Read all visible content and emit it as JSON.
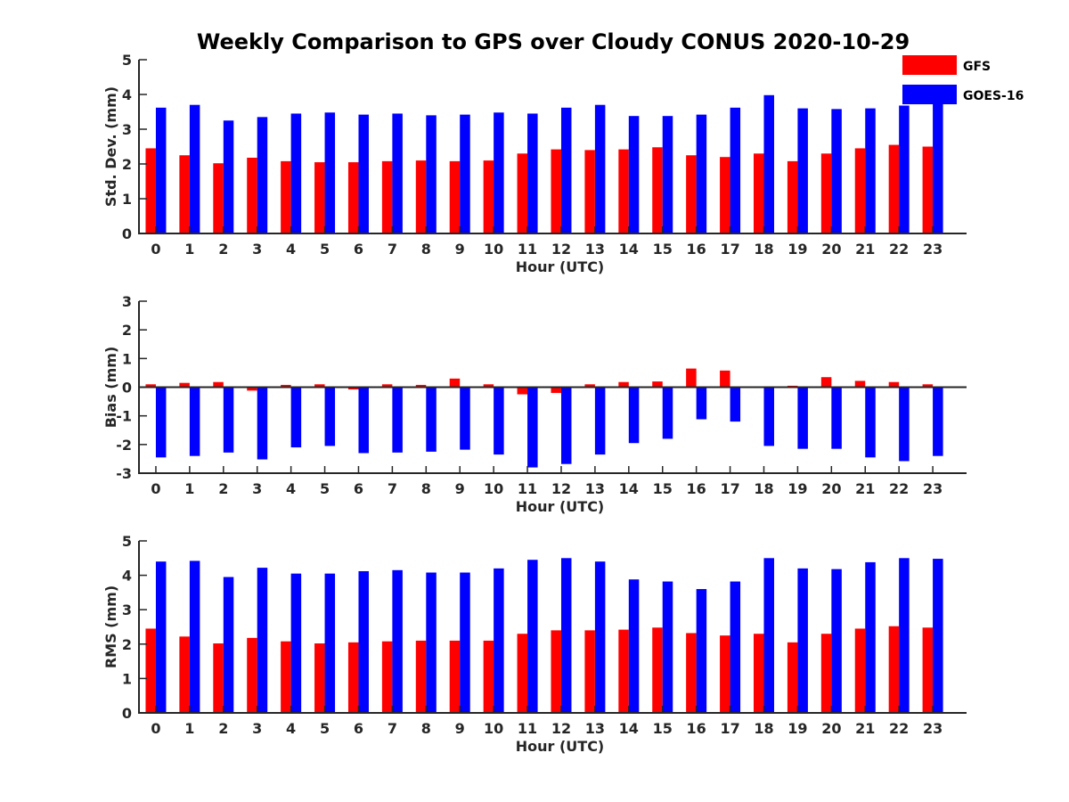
{
  "figure": {
    "title": "Weekly Comparison to GPS over Cloudy CONUS 2020-10-29"
  },
  "legend": {
    "placement": "top-right",
    "items": [
      {
        "label": "GFS",
        "color": "#ff0000"
      },
      {
        "label": "GOES-16",
        "color": "#0000ff"
      }
    ]
  },
  "chart_data": [
    {
      "type": "bar",
      "xlabel": "Hour (UTC)",
      "ylabel": "Std. Dev. (mm)",
      "ylim": [
        0,
        5
      ],
      "yticks": [
        0,
        1,
        2,
        3,
        4,
        5
      ],
      "categories": [
        "0",
        "1",
        "2",
        "3",
        "4",
        "5",
        "6",
        "7",
        "8",
        "9",
        "10",
        "11",
        "12",
        "13",
        "14",
        "15",
        "16",
        "17",
        "18",
        "19",
        "20",
        "21",
        "22",
        "23"
      ],
      "series": [
        {
          "name": "GFS",
          "color": "#ff0000",
          "values": [
            2.45,
            2.25,
            2.02,
            2.18,
            2.08,
            2.05,
            2.05,
            2.08,
            2.1,
            2.08,
            2.1,
            2.3,
            2.42,
            2.4,
            2.42,
            2.48,
            2.25,
            2.2,
            2.3,
            2.08,
            2.3,
            2.45,
            2.55,
            2.5
          ]
        },
        {
          "name": "GOES-16",
          "color": "#0000ff",
          "values": [
            3.62,
            3.7,
            3.25,
            3.35,
            3.45,
            3.48,
            3.42,
            3.45,
            3.4,
            3.42,
            3.48,
            3.45,
            3.62,
            3.7,
            3.38,
            3.38,
            3.42,
            3.62,
            3.98,
            3.6,
            3.58,
            3.6,
            3.68,
            4.0
          ]
        }
      ]
    },
    {
      "type": "bar",
      "xlabel": "Hour (UTC)",
      "ylabel": "Bias (mm)",
      "ylim": [
        -3,
        3
      ],
      "yticks": [
        -3,
        -2,
        -1,
        0,
        1,
        2,
        3
      ],
      "zero_line": true,
      "categories": [
        "0",
        "1",
        "2",
        "3",
        "4",
        "5",
        "6",
        "7",
        "8",
        "9",
        "10",
        "11",
        "12",
        "13",
        "14",
        "15",
        "16",
        "17",
        "18",
        "19",
        "20",
        "21",
        "22",
        "23"
      ],
      "series": [
        {
          "name": "GFS",
          "color": "#ff0000",
          "values": [
            0.1,
            0.15,
            0.18,
            -0.12,
            0.08,
            0.1,
            -0.08,
            0.1,
            0.08,
            0.3,
            0.1,
            -0.25,
            -0.2,
            0.1,
            0.18,
            0.2,
            0.65,
            0.58,
            0.0,
            0.05,
            0.35,
            0.22,
            0.18,
            0.1
          ]
        },
        {
          "name": "GOES-16",
          "color": "#0000ff",
          "values": [
            -2.45,
            -2.4,
            -2.28,
            -2.52,
            -2.1,
            -2.05,
            -2.3,
            -2.28,
            -2.25,
            -2.18,
            -2.35,
            -2.8,
            -2.68,
            -2.35,
            -1.95,
            -1.8,
            -1.12,
            -1.2,
            -2.05,
            -2.15,
            -2.15,
            -2.45,
            -2.58,
            -2.4
          ]
        }
      ]
    },
    {
      "type": "bar",
      "xlabel": "Hour (UTC)",
      "ylabel": "RMS (mm)",
      "ylim": [
        0,
        5
      ],
      "yticks": [
        0,
        1,
        2,
        3,
        4,
        5
      ],
      "categories": [
        "0",
        "1",
        "2",
        "3",
        "4",
        "5",
        "6",
        "7",
        "8",
        "9",
        "10",
        "11",
        "12",
        "13",
        "14",
        "15",
        "16",
        "17",
        "18",
        "19",
        "20",
        "21",
        "22",
        "23"
      ],
      "series": [
        {
          "name": "GFS",
          "color": "#ff0000",
          "values": [
            2.45,
            2.22,
            2.02,
            2.18,
            2.08,
            2.02,
            2.05,
            2.08,
            2.1,
            2.1,
            2.1,
            2.3,
            2.4,
            2.4,
            2.42,
            2.48,
            2.32,
            2.25,
            2.3,
            2.05,
            2.3,
            2.45,
            2.52,
            2.48
          ]
        },
        {
          "name": "GOES-16",
          "color": "#0000ff",
          "values": [
            4.4,
            4.42,
            3.95,
            4.22,
            4.05,
            4.05,
            4.12,
            4.15,
            4.08,
            4.08,
            4.2,
            4.45,
            4.5,
            4.4,
            3.88,
            3.82,
            3.6,
            3.82,
            4.5,
            4.2,
            4.18,
            4.38,
            4.5,
            4.48
          ]
        }
      ]
    }
  ]
}
